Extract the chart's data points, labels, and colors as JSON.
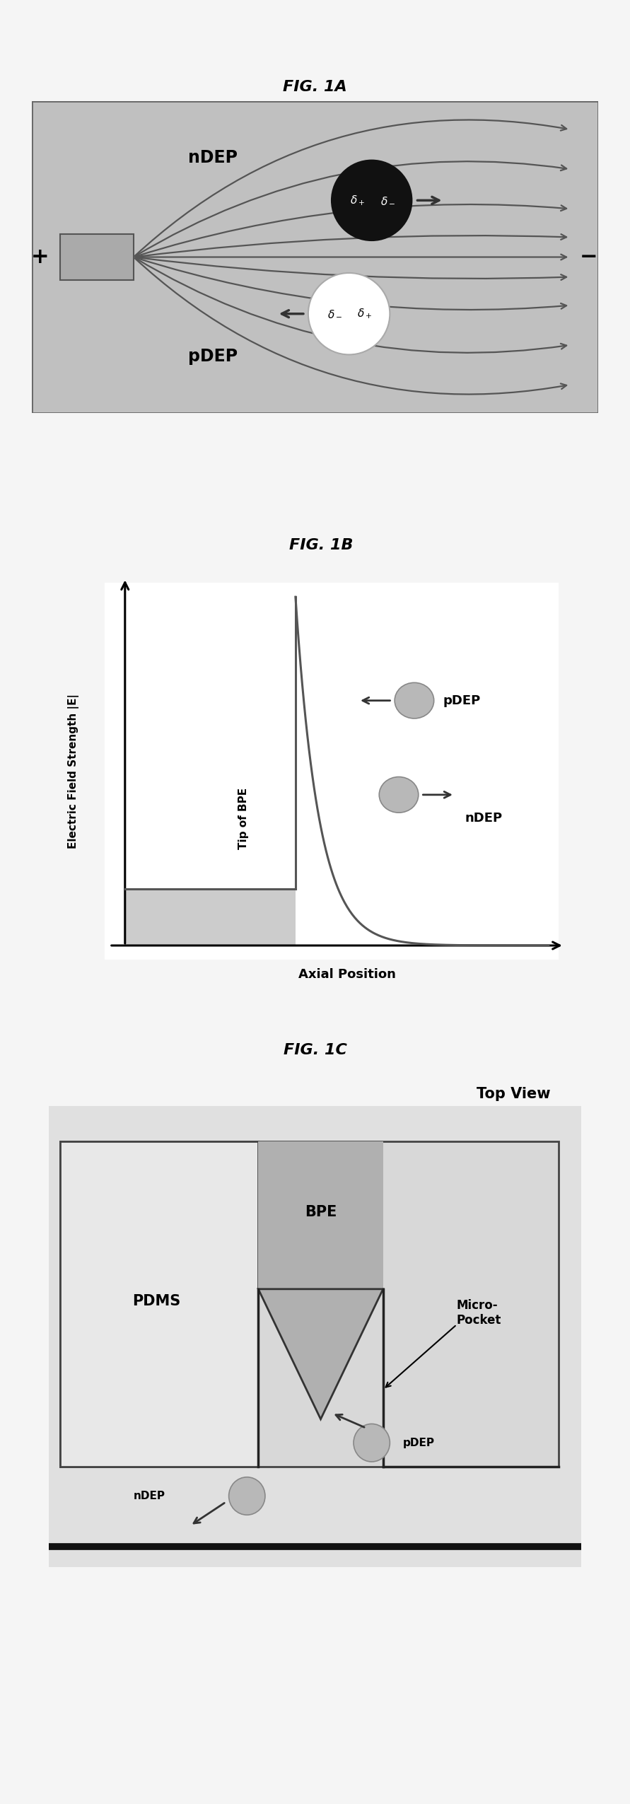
{
  "bg_color": "#c8c8c8",
  "white": "#ffffff",
  "black": "#000000",
  "panel_bg_1a": "#c0c0c0",
  "fig1a_label": "FIG. 1A",
  "fig1b_label": "FIG. 1B",
  "fig1c_label": "FIG. 1C",
  "label_ndep": "nDEP",
  "label_pdep": "pDEP",
  "label_bpe": "BPE",
  "label_pdms": "PDMS",
  "label_pocket": "Micro-\nPocket",
  "label_topview": "Top View",
  "label_tip_bpe": "Tip of BPE",
  "label_axial": "Axial Position",
  "label_efield": "Electric Field Strength |E|",
  "label_plus": "+",
  "label_minus": "−",
  "arrow_color": "#555555",
  "electrode_color": "#aaaaaa",
  "dark_cell_color": "#111111",
  "light_cell_color": "#ffffff",
  "cell_gray": "#b8b8b8"
}
